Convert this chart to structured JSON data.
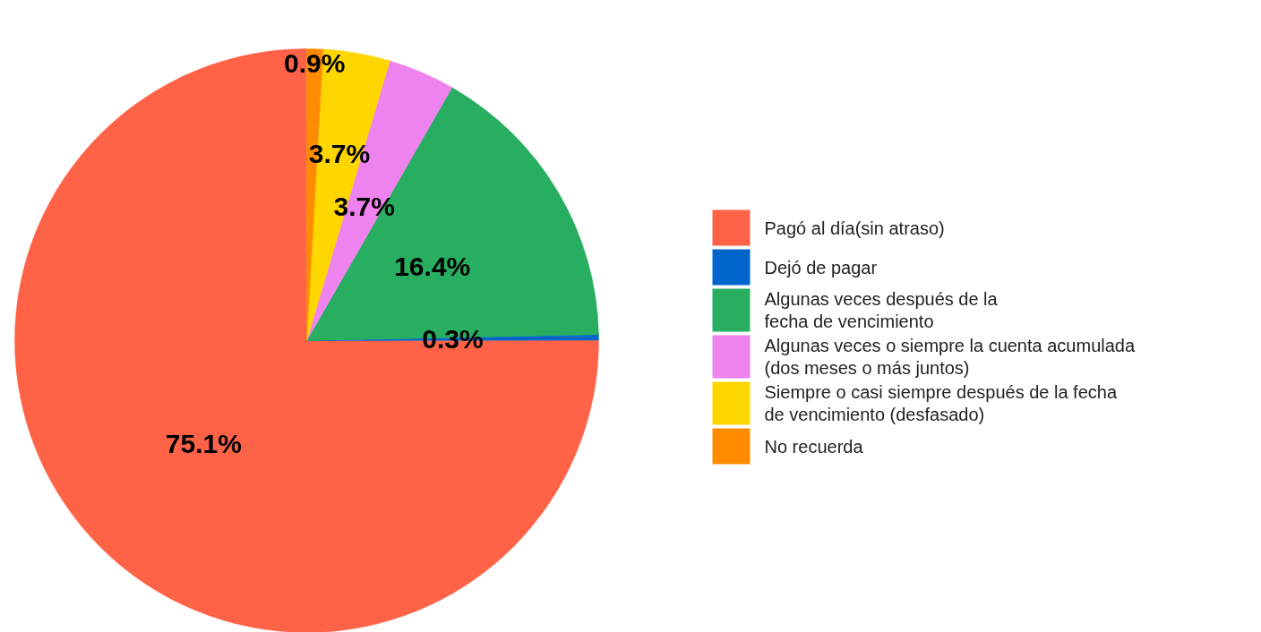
{
  "chart_data": {
    "type": "pie",
    "categories": [
      "Pagó al día(sin atraso)",
      "Dejó de pagar",
      "Algunas veces después de la fecha de vencimiento",
      "Algunas veces o siempre la cuenta acumulada (dos meses o más juntos)",
      "Siempre o casi siempre después de la fecha de vencimiento (desfasado)",
      "No recuerda"
    ],
    "values": [
      75.1,
      0.3,
      16.4,
      3.7,
      3.7,
      0.9
    ],
    "colors": [
      "#ff6347",
      "#0066cc",
      "#27ae60",
      "#ee82ee",
      "#ffd700",
      "#ff8c00"
    ],
    "value_labels": [
      "75.1%",
      "0.3%",
      "16.4%",
      "3.7%",
      "3.7%",
      "0.9%"
    ],
    "legend": "right"
  }
}
